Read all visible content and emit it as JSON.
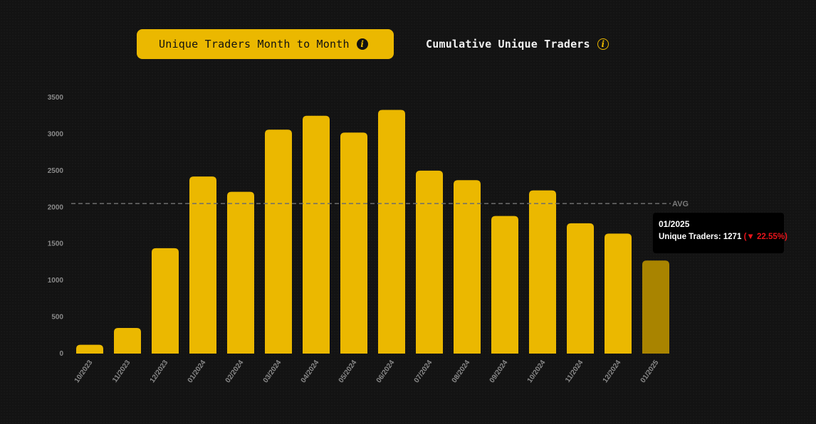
{
  "tabs": [
    {
      "label": "Unique Traders Month to Month",
      "active": true
    },
    {
      "label": "Cumulative Unique Traders",
      "active": false
    }
  ],
  "colors": {
    "bar": "#ebb800",
    "bar_highlight": "#a98400",
    "background": "#131313",
    "avg_line": "#6e6e6e",
    "negative": "#e8151b"
  },
  "tooltip": {
    "title": "01/2025",
    "label": "Unique Traders:",
    "value": "1271",
    "change": "(▼ 22.55%)"
  },
  "chart_data": {
    "type": "bar",
    "categories": [
      "10/2023",
      "11/2023",
      "12/2023",
      "01/2024",
      "02/2024",
      "03/2024",
      "04/2024",
      "05/2024",
      "06/2024",
      "07/2024",
      "08/2024",
      "09/2024",
      "10/2024",
      "11/2024",
      "12/2024",
      "01/2025"
    ],
    "values": [
      120,
      350,
      1440,
      2420,
      2210,
      3060,
      3250,
      3020,
      3330,
      2500,
      2370,
      1880,
      2230,
      1780,
      1640,
      1271
    ],
    "highlight_index": 15,
    "ylim": [
      0,
      3500
    ],
    "yticks": [
      0,
      500,
      1000,
      1500,
      2000,
      2500,
      3000,
      3500
    ],
    "avg": {
      "label": "AVG",
      "value": 2050
    },
    "grid": false,
    "legend": "none"
  }
}
